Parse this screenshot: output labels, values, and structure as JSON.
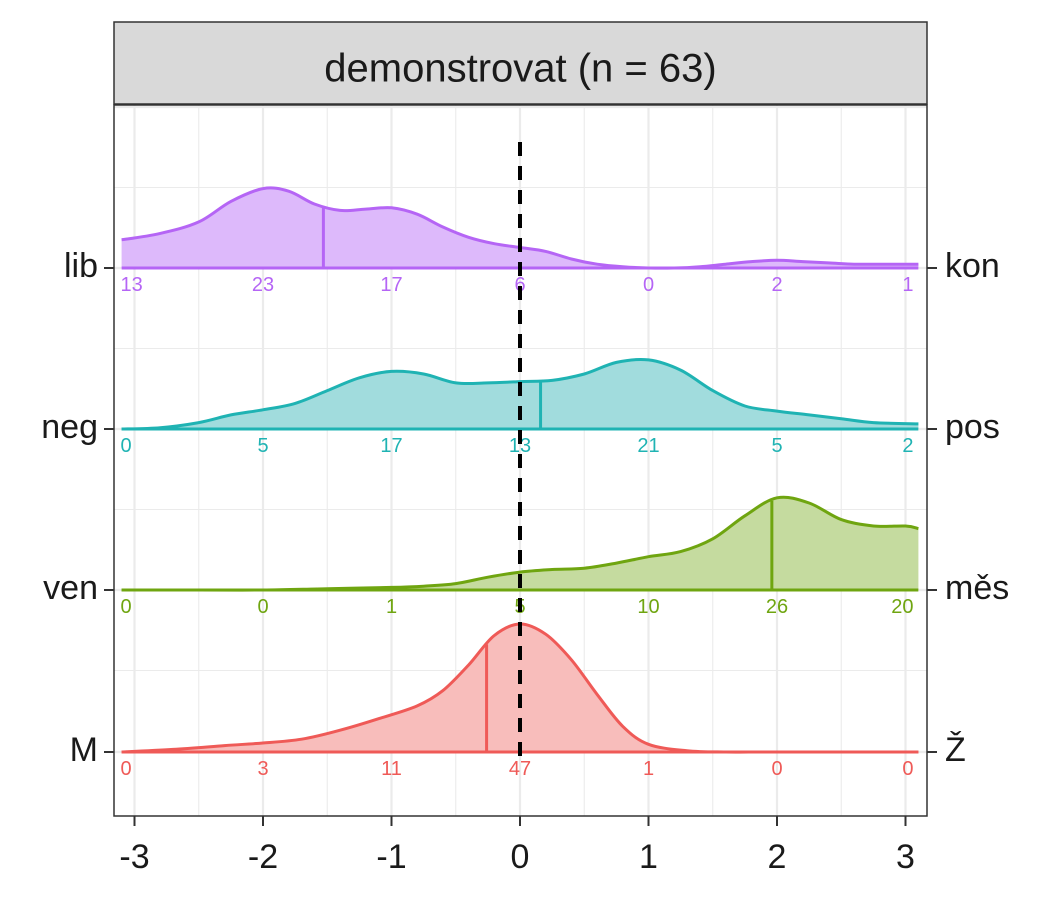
{
  "chart_data": {
    "type": "ridgeline",
    "title": "demonstrovat (n = 63)",
    "xlim": [
      -3.1,
      3.1
    ],
    "x_ticks": [
      -3,
      -2,
      -1,
      0,
      1,
      2,
      3
    ],
    "x_tick_labels": [
      "-3",
      "-2",
      "-1",
      "0",
      "1",
      "2",
      "3"
    ],
    "reference_line_x": 0,
    "grid": true,
    "rows": [
      {
        "left_label": "lib",
        "right_label": "kon",
        "color": "#B565F5",
        "fill": "#DDB9FB",
        "marker_x": -1.53,
        "counts": [
          13,
          23,
          17,
          6,
          0,
          2,
          1
        ],
        "density": [
          [
            -3.1,
            0.22
          ],
          [
            -2.8,
            0.27
          ],
          [
            -2.5,
            0.36
          ],
          [
            -2.25,
            0.52
          ],
          [
            -2.0,
            0.62
          ],
          [
            -1.8,
            0.6
          ],
          [
            -1.6,
            0.5
          ],
          [
            -1.4,
            0.45
          ],
          [
            -1.2,
            0.46
          ],
          [
            -1.0,
            0.47
          ],
          [
            -0.8,
            0.42
          ],
          [
            -0.6,
            0.32
          ],
          [
            -0.4,
            0.24
          ],
          [
            -0.2,
            0.19
          ],
          [
            0.0,
            0.16
          ],
          [
            0.2,
            0.13
          ],
          [
            0.4,
            0.07
          ],
          [
            0.6,
            0.03
          ],
          [
            0.8,
            0.01
          ],
          [
            1.0,
            0.0
          ],
          [
            1.2,
            0.0
          ],
          [
            1.4,
            0.01
          ],
          [
            1.6,
            0.03
          ],
          [
            1.8,
            0.05
          ],
          [
            2.0,
            0.06
          ],
          [
            2.2,
            0.05
          ],
          [
            2.4,
            0.04
          ],
          [
            2.6,
            0.03
          ],
          [
            2.8,
            0.03
          ],
          [
            3.1,
            0.03
          ]
        ]
      },
      {
        "left_label": "neg",
        "right_label": "pos",
        "color": "#1FB3B3",
        "fill": "#A1DCDD",
        "marker_x": 0.16,
        "counts": [
          0,
          5,
          17,
          13,
          21,
          5,
          2
        ],
        "density": [
          [
            -3.1,
            0.0
          ],
          [
            -2.8,
            0.01
          ],
          [
            -2.5,
            0.05
          ],
          [
            -2.25,
            0.11
          ],
          [
            -2.0,
            0.15
          ],
          [
            -1.75,
            0.2
          ],
          [
            -1.5,
            0.3
          ],
          [
            -1.25,
            0.4
          ],
          [
            -1.0,
            0.45
          ],
          [
            -0.75,
            0.43
          ],
          [
            -0.5,
            0.36
          ],
          [
            -0.25,
            0.36
          ],
          [
            0.0,
            0.37
          ],
          [
            0.25,
            0.38
          ],
          [
            0.5,
            0.43
          ],
          [
            0.75,
            0.52
          ],
          [
            1.0,
            0.54
          ],
          [
            1.25,
            0.46
          ],
          [
            1.5,
            0.3
          ],
          [
            1.75,
            0.18
          ],
          [
            2.0,
            0.14
          ],
          [
            2.25,
            0.11
          ],
          [
            2.5,
            0.08
          ],
          [
            2.75,
            0.05
          ],
          [
            3.1,
            0.04
          ]
        ]
      },
      {
        "left_label": "ven",
        "right_label": "měs",
        "color": "#6FA510",
        "fill": "#C5DB9F",
        "marker_x": 1.96,
        "counts": [
          0,
          0,
          1,
          5,
          10,
          26,
          20
        ],
        "density": [
          [
            -3.1,
            0.0
          ],
          [
            -2.5,
            0.0
          ],
          [
            -2.0,
            0.0
          ],
          [
            -1.5,
            0.01
          ],
          [
            -1.0,
            0.02
          ],
          [
            -0.75,
            0.03
          ],
          [
            -0.5,
            0.05
          ],
          [
            -0.25,
            0.1
          ],
          [
            0.0,
            0.14
          ],
          [
            0.25,
            0.16
          ],
          [
            0.5,
            0.17
          ],
          [
            0.75,
            0.21
          ],
          [
            1.0,
            0.26
          ],
          [
            1.25,
            0.3
          ],
          [
            1.5,
            0.4
          ],
          [
            1.75,
            0.58
          ],
          [
            2.0,
            0.72
          ],
          [
            2.25,
            0.68
          ],
          [
            2.5,
            0.55
          ],
          [
            2.75,
            0.5
          ],
          [
            3.0,
            0.5
          ],
          [
            3.1,
            0.48
          ]
        ]
      },
      {
        "left_label": "M",
        "right_label": "Ž",
        "color": "#EF5A57",
        "fill": "#F8BDBB",
        "marker_x": -0.26,
        "counts": [
          0,
          3,
          11,
          47,
          1,
          0,
          0
        ],
        "density": [
          [
            -3.1,
            0.0
          ],
          [
            -2.7,
            0.02
          ],
          [
            -2.3,
            0.05
          ],
          [
            -2.0,
            0.07
          ],
          [
            -1.7,
            0.1
          ],
          [
            -1.4,
            0.17
          ],
          [
            -1.1,
            0.26
          ],
          [
            -0.8,
            0.36
          ],
          [
            -0.6,
            0.48
          ],
          [
            -0.4,
            0.68
          ],
          [
            -0.2,
            0.91
          ],
          [
            0.0,
            1.0
          ],
          [
            0.2,
            0.92
          ],
          [
            0.4,
            0.72
          ],
          [
            0.6,
            0.45
          ],
          [
            0.8,
            0.2
          ],
          [
            1.0,
            0.06
          ],
          [
            1.3,
            0.01
          ],
          [
            1.6,
            0.0
          ],
          [
            2.0,
            0.0
          ],
          [
            3.1,
            0.0
          ]
        ]
      }
    ]
  }
}
